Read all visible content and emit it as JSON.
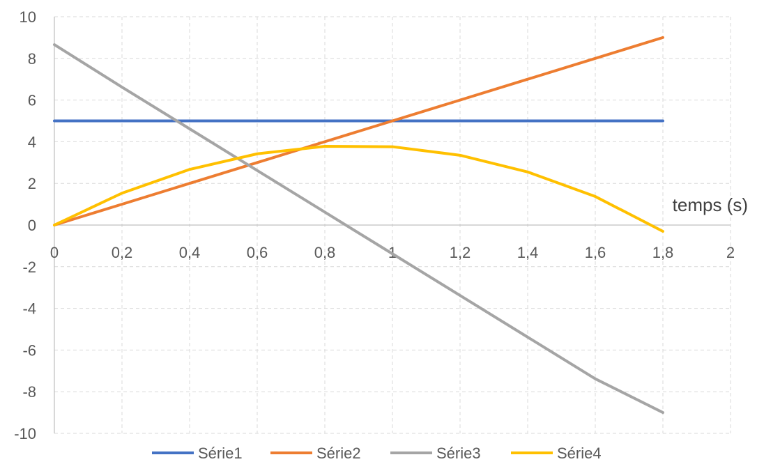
{
  "chart_data": {
    "type": "line",
    "xlabel": "temps (s)",
    "ylabel": "",
    "xlim": [
      0,
      2
    ],
    "ylim": [
      -10,
      10
    ],
    "x_ticks": [
      "0",
      "0,2",
      "0,4",
      "0,6",
      "0,8",
      "1",
      "1,2",
      "1,4",
      "1,6",
      "1,8",
      "2"
    ],
    "y_ticks": [
      "10",
      "8",
      "6",
      "4",
      "2",
      "0",
      "-2",
      "-4",
      "-6",
      "-8",
      "-10"
    ],
    "grid": "dashed",
    "legend_position": "bottom",
    "x": [
      0,
      0.2,
      0.4,
      0.6,
      0.8,
      1.0,
      1.2,
      1.4,
      1.6,
      1.8
    ],
    "series": [
      {
        "name": "Série1",
        "color": "#4472C4",
        "values": [
          5,
          5,
          5,
          5,
          5,
          5,
          5,
          5,
          5,
          5
        ]
      },
      {
        "name": "Série2",
        "color": "#ED7D31",
        "values": [
          0,
          1,
          2,
          3,
          4,
          5,
          6,
          7,
          8,
          9
        ]
      },
      {
        "name": "Série3",
        "color": "#A5A5A5",
        "values": [
          8.66,
          6.62,
          4.62,
          2.62,
          0.62,
          -1.38,
          -3.38,
          -5.38,
          -7.38,
          -9.0
        ]
      },
      {
        "name": "Série4",
        "color": "#FFC000",
        "values": [
          0,
          1.53,
          2.67,
          3.42,
          3.78,
          3.76,
          3.35,
          2.55,
          1.37,
          -0.3
        ]
      }
    ]
  }
}
